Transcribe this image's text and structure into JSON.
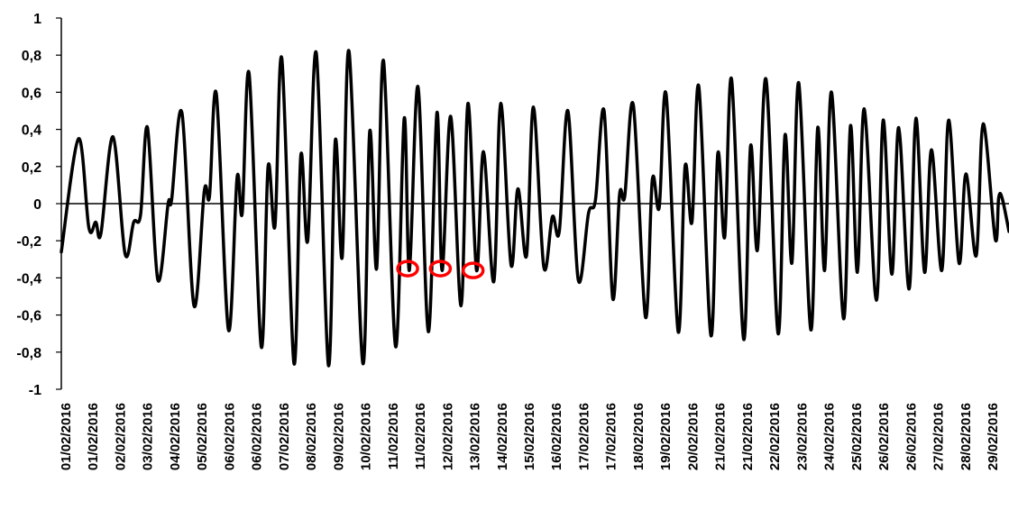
{
  "chart_data": {
    "type": "line",
    "title": "",
    "xlabel": "",
    "ylabel": "",
    "ylim": [
      -1,
      1
    ],
    "yticks": [
      -1,
      -0.8,
      -0.6,
      -0.4,
      -0.2,
      0,
      0.2,
      0.4,
      0.6,
      0.8,
      1
    ],
    "ytick_labels": [
      "-1",
      "-0,8",
      "-0,6",
      "-0,4",
      "-0,2",
      "0",
      "0,2",
      "0,4",
      "0,6",
      "0,8",
      "1"
    ],
    "x_tick_labels": [
      "01/02/2016",
      "01/02/2016",
      "02/02/2016",
      "03/02/2016",
      "04/02/2016",
      "05/02/2016",
      "06/02/2016",
      "06/02/2016",
      "07/02/2016",
      "08/02/2016",
      "09/02/2016",
      "10/02/2016",
      "11/02/2016",
      "11/02/2016",
      "12/02/2016",
      "13/02/2016",
      "14/02/2016",
      "15/02/2016",
      "16/02/2016",
      "17/02/2016",
      "17/02/2016",
      "18/02/2016",
      "19/02/2016",
      "20/02/2016",
      "21/02/2016",
      "21/02/2016",
      "22/02/2016",
      "23/02/2016",
      "24/02/2016",
      "25/02/2016",
      "26/02/2016",
      "26/02/2016",
      "27/02/2016",
      "28/02/2016",
      "29/02/2016"
    ],
    "grid": false,
    "line_color": "#000000",
    "marker_color": "#ff0000",
    "series": [
      {
        "points": [
          [
            0.0,
            -0.26
          ],
          [
            0.5,
            0.35
          ],
          [
            0.8,
            -0.13
          ],
          [
            1.0,
            -0.1
          ],
          [
            1.15,
            -0.16
          ],
          [
            1.5,
            0.36
          ],
          [
            1.85,
            -0.27
          ],
          [
            2.1,
            -0.1
          ],
          [
            2.3,
            -0.06
          ],
          [
            2.5,
            0.41
          ],
          [
            2.8,
            -0.41
          ],
          [
            3.1,
            0.0
          ],
          [
            3.2,
            0.02
          ],
          [
            3.5,
            0.49
          ],
          [
            3.85,
            -0.55
          ],
          [
            4.15,
            0.07
          ],
          [
            4.3,
            0.04
          ],
          [
            4.5,
            0.59
          ],
          [
            4.85,
            -0.68
          ],
          [
            5.1,
            0.14
          ],
          [
            5.25,
            -0.05
          ],
          [
            5.45,
            0.7
          ],
          [
            5.8,
            -0.77
          ],
          [
            6.0,
            0.2
          ],
          [
            6.2,
            -0.12
          ],
          [
            6.4,
            0.78
          ],
          [
            6.75,
            -0.86
          ],
          [
            6.95,
            0.26
          ],
          [
            7.15,
            -0.2
          ],
          [
            7.4,
            0.81
          ],
          [
            7.75,
            -0.87
          ],
          [
            7.95,
            0.34
          ],
          [
            8.15,
            -0.29
          ],
          [
            8.35,
            0.82
          ],
          [
            8.75,
            -0.86
          ],
          [
            8.95,
            0.39
          ],
          [
            9.15,
            -0.35
          ],
          [
            9.35,
            0.77
          ],
          [
            9.7,
            -0.77
          ],
          [
            9.95,
            0.46
          ],
          [
            10.1,
            -0.36
          ],
          [
            10.35,
            0.63
          ],
          [
            10.65,
            -0.69
          ],
          [
            10.9,
            0.49
          ],
          [
            11.05,
            -0.36
          ],
          [
            11.3,
            0.47
          ],
          [
            11.6,
            -0.55
          ],
          [
            11.8,
            0.54
          ],
          [
            12.05,
            -0.36
          ],
          [
            12.25,
            0.28
          ],
          [
            12.55,
            -0.42
          ],
          [
            12.75,
            0.54
          ],
          [
            13.05,
            -0.33
          ],
          [
            13.25,
            0.08
          ],
          [
            13.5,
            -0.28
          ],
          [
            13.7,
            0.52
          ],
          [
            14.0,
            -0.34
          ],
          [
            14.25,
            -0.07
          ],
          [
            14.45,
            -0.15
          ],
          [
            14.7,
            0.5
          ],
          [
            15.0,
            -0.41
          ],
          [
            15.3,
            -0.05
          ],
          [
            15.5,
            0.02
          ],
          [
            15.75,
            0.5
          ],
          [
            16.0,
            -0.51
          ],
          [
            16.2,
            0.05
          ],
          [
            16.35,
            0.04
          ],
          [
            16.6,
            0.53
          ],
          [
            16.95,
            -0.61
          ],
          [
            17.15,
            0.13
          ],
          [
            17.35,
            -0.02
          ],
          [
            17.55,
            0.59
          ],
          [
            17.9,
            -0.69
          ],
          [
            18.1,
            0.2
          ],
          [
            18.3,
            -0.1
          ],
          [
            18.5,
            0.63
          ],
          [
            18.85,
            -0.71
          ],
          [
            19.05,
            0.27
          ],
          [
            19.25,
            -0.18
          ],
          [
            19.45,
            0.67
          ],
          [
            19.8,
            -0.73
          ],
          [
            20.0,
            0.31
          ],
          [
            20.2,
            -0.25
          ],
          [
            20.45,
            0.67
          ],
          [
            20.8,
            -0.7
          ],
          [
            21.0,
            0.37
          ],
          [
            21.2,
            -0.32
          ],
          [
            21.4,
            0.65
          ],
          [
            21.75,
            -0.68
          ],
          [
            21.95,
            0.41
          ],
          [
            22.15,
            -0.36
          ],
          [
            22.35,
            0.6
          ],
          [
            22.7,
            -0.62
          ],
          [
            22.9,
            0.42
          ],
          [
            23.1,
            -0.37
          ],
          [
            23.3,
            0.51
          ],
          [
            23.65,
            -0.52
          ],
          [
            23.85,
            0.45
          ],
          [
            24.1,
            -0.38
          ],
          [
            24.3,
            0.41
          ],
          [
            24.6,
            -0.46
          ],
          [
            24.8,
            0.46
          ],
          [
            25.05,
            -0.37
          ],
          [
            25.25,
            0.29
          ],
          [
            25.55,
            -0.36
          ],
          [
            25.75,
            0.45
          ],
          [
            26.05,
            -0.32
          ],
          [
            26.25,
            0.16
          ],
          [
            26.55,
            -0.28
          ],
          [
            26.75,
            0.43
          ],
          [
            27.1,
            -0.19
          ],
          [
            27.2,
            0.03
          ],
          [
            27.3,
            0.03
          ],
          [
            27.5,
            -0.15
          ]
        ]
      }
    ],
    "markers": [
      {
        "x": 10.05,
        "y": -0.35
      },
      {
        "x": 11.0,
        "y": -0.35
      },
      {
        "x": 11.95,
        "y": -0.36
      }
    ]
  }
}
